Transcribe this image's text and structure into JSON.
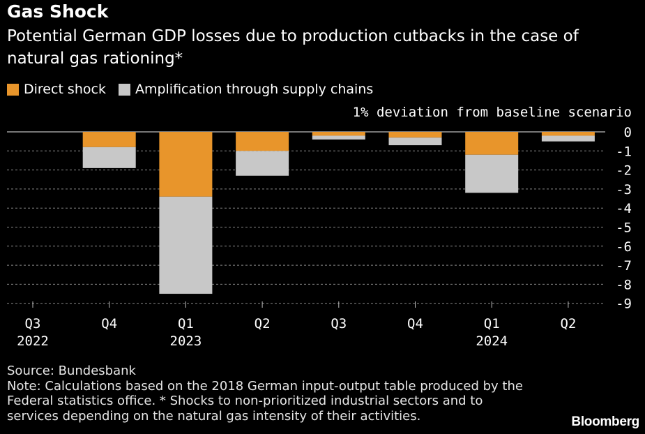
{
  "header": {
    "title": "Gas Shock",
    "subtitle": "Potential German GDP losses due to production cutbacks in the case of natural gas rationing*"
  },
  "colors": {
    "direct": "#e8952b",
    "amplification": "#c8c8c8",
    "background": "#000000",
    "grid": "#8a8a8a"
  },
  "chart_data": {
    "type": "bar",
    "stacked": true,
    "title": "Gas Shock",
    "ylabel": "1% deviation from baseline scenario",
    "ylim": [
      -9,
      0
    ],
    "yticks": [
      "0",
      "-1",
      "-2",
      "-3",
      "-4",
      "-5",
      "-6",
      "-7",
      "-8",
      "-9"
    ],
    "categories": [
      "Q3",
      "Q4",
      "Q1",
      "Q2",
      "Q3",
      "Q4",
      "Q1",
      "Q2"
    ],
    "year_labels": [
      {
        "index": 0,
        "label": "2022"
      },
      {
        "index": 2,
        "label": "2023"
      },
      {
        "index": 6,
        "label": "2024"
      }
    ],
    "series": [
      {
        "name": "Direct shock",
        "values": [
          0,
          -0.8,
          -3.4,
          -1.0,
          -0.2,
          -0.3,
          -1.2,
          -0.2
        ]
      },
      {
        "name": "Amplification through supply chains",
        "values": [
          0,
          -1.1,
          -5.1,
          -1.3,
          -0.2,
          -0.4,
          -2.0,
          -0.3
        ]
      }
    ]
  },
  "footer": {
    "source": "Source: Bundesbank",
    "note_lines": [
      "Note: Calculations based on the 2018 German input-output table produced by the",
      "Federal statistics office. * Shocks to non-prioritized industrial sectors and to",
      "services depending on the natural gas intensity of their activities."
    ],
    "brand": "Bloomberg"
  }
}
